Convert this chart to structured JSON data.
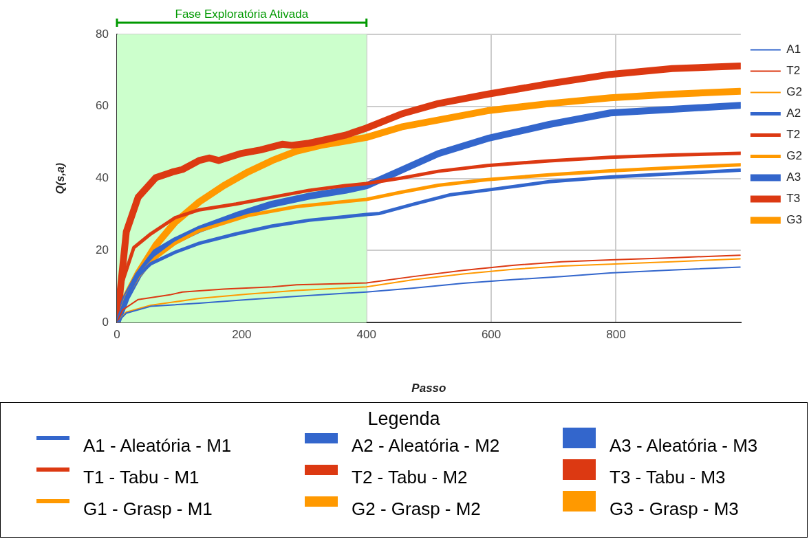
{
  "chart_data": {
    "type": "line",
    "xlabel": "Passo",
    "ylabel": "Q(s,a)",
    "xlim": [
      0,
      1000
    ],
    "xticks": [
      0,
      200,
      400,
      600,
      800
    ],
    "ylim": [
      0,
      80
    ],
    "yticks": [
      0,
      20,
      40,
      60,
      80
    ],
    "grid": true,
    "legend": "right",
    "marker": "none",
    "line_style": "solid",
    "legend_title": "Legenda",
    "bands": [
      {
        "axis": "x",
        "from": 0,
        "to": 400,
        "label": "Fase Exploratória Ativada",
        "color": "#ccffcc"
      }
    ],
    "annotations": [
      "A1 - Aleatória - M1",
      "T1 - Tabu - M1",
      "G1 - Grasp - M1",
      "A2 - Aleatória - M2",
      "T2 - Tabu - M2",
      "G2 - Grasp - M2",
      "A3 - Aleatória - M3",
      "T3 - Tabu - M3",
      "G3 - Grasp - M3"
    ],
    "series": [
      {
        "name": "A1",
        "color": "#3366cc",
        "x": [
          0,
          15,
          54,
          132,
          210,
          288,
          400,
          476,
          555,
          634,
          713,
          791,
          890,
          999
        ],
        "values": [
          0,
          2.6,
          4.5,
          5.4,
          6.4,
          7.3,
          8.5,
          9.6,
          10.9,
          11.9,
          12.8,
          13.8,
          14.6,
          15.4
        ]
      },
      {
        "name": "T2",
        "color": "#dc3912",
        "x": [
          0,
          9,
          34,
          85,
          105,
          171,
          249,
          288,
          400,
          476,
          555,
          634,
          713,
          791,
          890,
          999
        ],
        "values": [
          0,
          3.5,
          6.4,
          7.7,
          8.5,
          9.3,
          9.9,
          10.5,
          11,
          12.8,
          14.5,
          15.9,
          16.9,
          17.4,
          18,
          18.7
        ]
      },
      {
        "name": "G2",
        "color": "#ff9900",
        "x": [
          0,
          15,
          54,
          132,
          210,
          288,
          400,
          476,
          555,
          634,
          713,
          791,
          890,
          999
        ],
        "values": [
          0,
          2.9,
          4.8,
          6.7,
          7.9,
          8.9,
          9.9,
          11.9,
          13.5,
          14.8,
          15.7,
          16.2,
          16.9,
          17.7
        ]
      },
      {
        "name": "A2",
        "color": "#3366cc",
        "x": [
          0,
          15,
          34,
          54,
          93,
          132,
          191,
          249,
          308,
          366,
          400,
          421,
          476,
          535,
          594,
          693,
          791,
          890,
          999
        ],
        "values": [
          0,
          7,
          13.1,
          16.3,
          19.5,
          22,
          24.6,
          26.8,
          28.4,
          29.4,
          30,
          30.3,
          32.9,
          35.5,
          36.8,
          39.1,
          40.4,
          41.3,
          42.3
        ]
      },
      {
        "name": "T2",
        "color": "#dc3912",
        "x": [
          0,
          5,
          27,
          54,
          93,
          132,
          191,
          249,
          308,
          366,
          400,
          456,
          515,
          594,
          693,
          791,
          890,
          999
        ],
        "values": [
          0,
          9.3,
          20.8,
          24.6,
          29.1,
          31.3,
          32.9,
          34.8,
          36.7,
          38,
          38.6,
          40.1,
          42,
          43.6,
          44.9,
          45.9,
          46.5,
          47
        ]
      },
      {
        "name": "G2",
        "color": "#ff9900",
        "x": [
          0,
          15,
          35,
          62,
          93,
          132,
          210,
          288,
          400,
          456,
          515,
          594,
          693,
          791,
          890,
          999
        ],
        "values": [
          0,
          7.3,
          13,
          18,
          22,
          25.5,
          29.7,
          32.2,
          34.2,
          36.2,
          38.1,
          39.7,
          41,
          42.1,
          43,
          43.8
        ]
      },
      {
        "name": "A3",
        "color": "#3366cc",
        "x": [
          0,
          15,
          34,
          62,
          93,
          132,
          191,
          249,
          308,
          366,
          400,
          456,
          515,
          594,
          693,
          791,
          890,
          999
        ],
        "values": [
          0,
          7,
          13.1,
          19.5,
          22.7,
          25.9,
          29.7,
          32.9,
          35.1,
          36.7,
          38,
          42.3,
          46.9,
          51.1,
          55,
          58.2,
          59.2,
          60.3
        ]
      },
      {
        "name": "T3",
        "color": "#dc3912",
        "x": [
          0,
          15,
          34,
          62,
          89,
          105,
          132,
          148,
          163,
          198,
          230,
          265,
          280,
          308,
          335,
          366,
          400,
          456,
          515,
          594,
          693,
          791,
          890,
          999
        ],
        "values": [
          0,
          25.2,
          34.8,
          40.2,
          41.8,
          42.5,
          45,
          45.7,
          45,
          46.9,
          47.9,
          49.5,
          49.2,
          49.8,
          50.8,
          52,
          54,
          57.9,
          60.8,
          63.4,
          66.3,
          68.9,
          70.5,
          71.2
        ]
      },
      {
        "name": "G3",
        "color": "#ff9900",
        "x": [
          0,
          1,
          15,
          34,
          62,
          93,
          132,
          171,
          210,
          249,
          288,
          327,
          400,
          456,
          594,
          693,
          791,
          890,
          999
        ],
        "values": [
          0,
          1,
          7.3,
          13.7,
          21.4,
          27.8,
          33.5,
          38,
          41.8,
          45,
          47.6,
          49.2,
          51.4,
          54.3,
          58.8,
          60.8,
          62.4,
          63.4,
          64.2
        ]
      }
    ]
  }
}
